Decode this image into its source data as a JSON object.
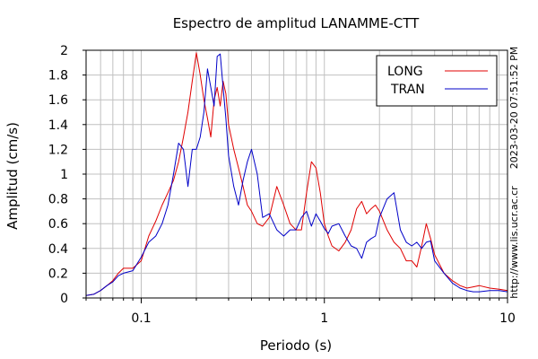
{
  "chart_data": {
    "type": "line",
    "title": "Espectro de amplitud LANAMME-CTT",
    "xlabel": "Periodo (s)",
    "ylabel": "Amplitud (cm/s)",
    "x_scale": "log",
    "xlim": [
      0.05,
      10
    ],
    "ylim": [
      0,
      2
    ],
    "x_ticks": [
      0.1,
      1,
      10
    ],
    "x_tick_labels": [
      "0.1",
      "1",
      "10"
    ],
    "y_ticks": [
      0,
      0.2,
      0.4,
      0.6,
      0.8,
      1,
      1.2,
      1.4,
      1.6,
      1.8,
      2
    ],
    "y_tick_labels": [
      "0",
      "0.2",
      "0.4",
      "0.6",
      "0.8",
      "1",
      "1.2",
      "1.4",
      "1.6",
      "1.8",
      "2"
    ],
    "grid": true,
    "legend_position": "top-right",
    "timestamp_label": "2023-03-20 07:51:52 PM",
    "url_label": "http://www.lis.ucr.ac.cr",
    "series": [
      {
        "name": "LONG",
        "color": "#e00000",
        "x": [
          0.05,
          0.055,
          0.06,
          0.065,
          0.07,
          0.075,
          0.08,
          0.09,
          0.1,
          0.11,
          0.12,
          0.13,
          0.14,
          0.15,
          0.16,
          0.17,
          0.18,
          0.19,
          0.2,
          0.21,
          0.22,
          0.23,
          0.24,
          0.25,
          0.26,
          0.27,
          0.28,
          0.29,
          0.3,
          0.32,
          0.34,
          0.36,
          0.38,
          0.4,
          0.43,
          0.46,
          0.5,
          0.55,
          0.6,
          0.65,
          0.7,
          0.75,
          0.8,
          0.85,
          0.9,
          0.95,
          1.0,
          1.05,
          1.1,
          1.2,
          1.3,
          1.4,
          1.5,
          1.6,
          1.7,
          1.8,
          1.9,
          2.0,
          2.2,
          2.4,
          2.6,
          2.8,
          3.0,
          3.2,
          3.4,
          3.6,
          3.8,
          4.0,
          4.5,
          5.0,
          5.5,
          6.0,
          6.5,
          7.0,
          8.0,
          9.0,
          10.0
        ],
        "values": [
          0.02,
          0.03,
          0.06,
          0.1,
          0.14,
          0.2,
          0.24,
          0.24,
          0.3,
          0.5,
          0.62,
          0.75,
          0.85,
          0.95,
          1.1,
          1.3,
          1.5,
          1.75,
          1.98,
          1.8,
          1.6,
          1.45,
          1.3,
          1.6,
          1.7,
          1.55,
          1.75,
          1.65,
          1.4,
          1.2,
          1.05,
          0.9,
          0.75,
          0.7,
          0.6,
          0.58,
          0.65,
          0.9,
          0.75,
          0.6,
          0.55,
          0.55,
          0.85,
          1.1,
          1.05,
          0.85,
          0.6,
          0.5,
          0.42,
          0.38,
          0.45,
          0.55,
          0.72,
          0.78,
          0.68,
          0.72,
          0.75,
          0.7,
          0.55,
          0.45,
          0.4,
          0.3,
          0.3,
          0.25,
          0.42,
          0.6,
          0.48,
          0.35,
          0.2,
          0.14,
          0.1,
          0.08,
          0.09,
          0.1,
          0.08,
          0.07,
          0.06
        ]
      },
      {
        "name": "TRAN",
        "color": "#0000c8",
        "x": [
          0.05,
          0.055,
          0.06,
          0.065,
          0.07,
          0.075,
          0.08,
          0.09,
          0.1,
          0.11,
          0.12,
          0.13,
          0.14,
          0.15,
          0.16,
          0.17,
          0.18,
          0.19,
          0.2,
          0.21,
          0.22,
          0.23,
          0.24,
          0.25,
          0.26,
          0.27,
          0.28,
          0.29,
          0.3,
          0.32,
          0.34,
          0.36,
          0.38,
          0.4,
          0.43,
          0.46,
          0.5,
          0.55,
          0.6,
          0.65,
          0.7,
          0.75,
          0.8,
          0.85,
          0.9,
          0.95,
          1.0,
          1.05,
          1.1,
          1.2,
          1.3,
          1.4,
          1.5,
          1.6,
          1.7,
          1.8,
          1.9,
          2.0,
          2.2,
          2.4,
          2.6,
          2.8,
          3.0,
          3.2,
          3.4,
          3.6,
          3.8,
          4.0,
          4.5,
          5.0,
          5.5,
          6.0,
          6.5,
          7.0,
          8.0,
          9.0,
          10.0
        ],
        "values": [
          0.02,
          0.03,
          0.06,
          0.1,
          0.13,
          0.18,
          0.2,
          0.22,
          0.33,
          0.45,
          0.5,
          0.6,
          0.75,
          1.0,
          1.25,
          1.2,
          0.9,
          1.2,
          1.2,
          1.3,
          1.5,
          1.85,
          1.7,
          1.55,
          1.95,
          1.97,
          1.7,
          1.45,
          1.15,
          0.9,
          0.75,
          0.95,
          1.1,
          1.2,
          1.0,
          0.65,
          0.68,
          0.55,
          0.5,
          0.55,
          0.55,
          0.65,
          0.7,
          0.58,
          0.68,
          0.62,
          0.56,
          0.52,
          0.58,
          0.6,
          0.5,
          0.42,
          0.4,
          0.32,
          0.45,
          0.48,
          0.5,
          0.65,
          0.8,
          0.85,
          0.55,
          0.45,
          0.42,
          0.45,
          0.4,
          0.45,
          0.46,
          0.3,
          0.2,
          0.12,
          0.08,
          0.06,
          0.05,
          0.05,
          0.06,
          0.06,
          0.05
        ]
      }
    ]
  }
}
